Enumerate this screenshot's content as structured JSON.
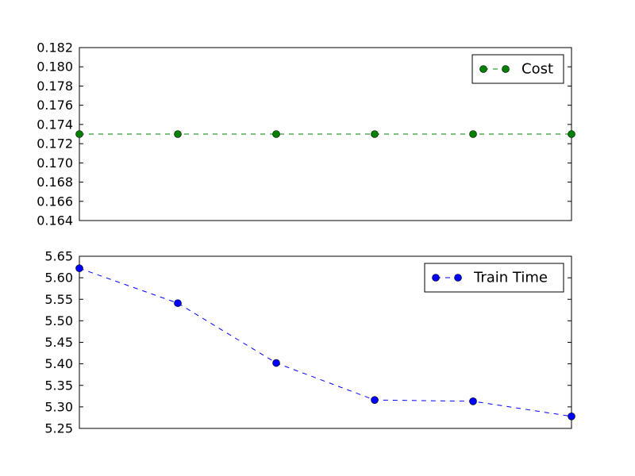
{
  "chart_data": [
    {
      "type": "line",
      "x": [
        0,
        1,
        2,
        3,
        4,
        5
      ],
      "ylim": [
        0.164,
        0.182
      ],
      "yticks": [
        "0.164",
        "0.166",
        "0.168",
        "0.170",
        "0.172",
        "0.174",
        "0.176",
        "0.178",
        "0.180",
        "0.182"
      ],
      "series": [
        {
          "name": "Cost",
          "values": [
            0.173,
            0.173,
            0.173,
            0.173,
            0.173,
            0.173
          ],
          "color": "#008000",
          "style": "dashed-with-circle-markers"
        }
      ],
      "legend": "top-right",
      "grid": false
    },
    {
      "type": "line",
      "x": [
        0,
        1,
        2,
        3,
        4,
        5
      ],
      "ylim": [
        5.25,
        5.65
      ],
      "yticks": [
        "5.25",
        "5.30",
        "5.35",
        "5.40",
        "5.45",
        "5.50",
        "5.55",
        "5.60",
        "5.65"
      ],
      "series": [
        {
          "name": "Train Time",
          "values": [
            5.622,
            5.541,
            5.402,
            5.316,
            5.313,
            5.278
          ],
          "color": "#0000ff",
          "style": "dashed-with-circle-markers"
        }
      ],
      "legend": "top-right",
      "grid": false
    }
  ]
}
